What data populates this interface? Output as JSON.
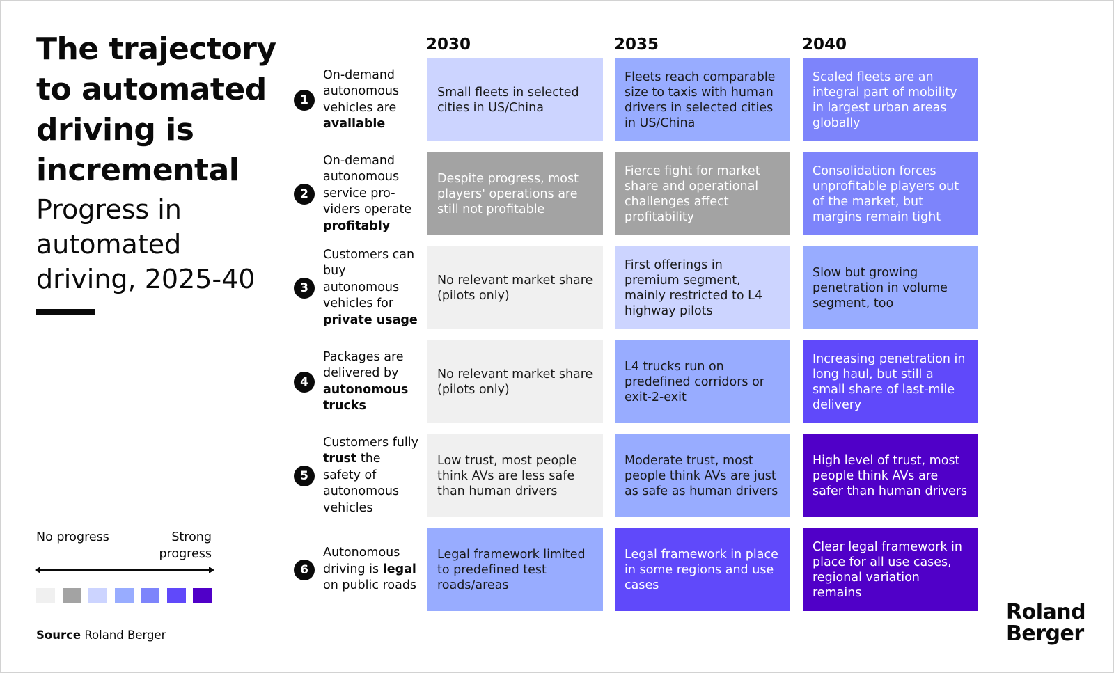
{
  "title": "The trajectory to automated driving is incremental",
  "subtitle": "Progress in automated driving, 2025-40",
  "years": [
    "2030",
    "2035",
    "2040"
  ],
  "rows": [
    {
      "number": "1",
      "label_before": "On-demand autonomous vehicles are",
      "label_bold": "available",
      "label_after": "",
      "cells": [
        {
          "text": "Small fleets in selected cities in US/China",
          "progress_level": 2
        },
        {
          "text": "Fleets reach comparable size to taxis with human drivers in selected cities in US/China",
          "progress_level": 3
        },
        {
          "text": "Scaled fleets are an integral part of mobility in largest urban areas globally",
          "progress_level": 4
        }
      ]
    },
    {
      "number": "2",
      "label_before": "On-demand autonomous service pro-viders operate",
      "label_bold": "profitably",
      "label_after": "",
      "cells": [
        {
          "text": "Despite progress, most players' operations are still not profitable",
          "progress_level": 1
        },
        {
          "text": "Fierce fight for market share and operational challenges affect profitability",
          "progress_level": 1
        },
        {
          "text": "Consolidation forces unprofitable players out of the market, but margins remain tight",
          "progress_level": 4
        }
      ]
    },
    {
      "number": "3",
      "label_before": "Customers can buy autonomous vehicles for",
      "label_bold": "private usage",
      "label_after": "",
      "cells": [
        {
          "text": "No relevant market share (pilots only)",
          "progress_level": 0
        },
        {
          "text": "First offerings in premium segment, mainly restricted to L4 highway pilots",
          "progress_level": 2
        },
        {
          "text": "Slow but growing penetration in volume segment, too",
          "progress_level": 3
        }
      ]
    },
    {
      "number": "4",
      "label_before": "Packages are delivered by",
      "label_bold": "autonomous trucks",
      "label_after": "",
      "cells": [
        {
          "text": "No relevant market share (pilots only)",
          "progress_level": 0
        },
        {
          "text": "L4 trucks run on predefined corridors or exit-2-exit",
          "progress_level": 3
        },
        {
          "text": "Increasing penetration in long haul, but still a small share of last-mile delivery",
          "progress_level": 5
        }
      ]
    },
    {
      "number": "5",
      "label_before": "Customers fully",
      "label_bold": "trust",
      "label_after": "the safety of autonomous vehicles",
      "cells": [
        {
          "text": "Low trust, most people think AVs are less safe than human drivers",
          "progress_level": 0
        },
        {
          "text": "Moderate trust, most people think AVs are just as safe as human drivers",
          "progress_level": 3
        },
        {
          "text": "High level of trust, most people think AVs are safer than human drivers",
          "progress_level": 6
        }
      ]
    },
    {
      "number": "6",
      "label_before": "Autonomous driving is",
      "label_bold": "legal",
      "label_after": "on public roads",
      "cells": [
        {
          "text": "Legal framework limited to predefined test roads/areas",
          "progress_level": 3
        },
        {
          "text": "Legal framework in place in some regions and use cases",
          "progress_level": 5
        },
        {
          "text": "Clear legal framework in place for all use cases, regional variation remains",
          "progress_level": 6
        }
      ]
    }
  ],
  "legend": {
    "left_label": "No progress",
    "right_label": "Strong progress",
    "scale_colors": [
      "#f0f0f0",
      "#a3a3a3",
      "#ccd4ff",
      "#98acff",
      "#7d84fb",
      "#6049fa",
      "#5000c8"
    ]
  },
  "source": {
    "label": "Source",
    "text": "Roland Berger"
  },
  "logo": {
    "line1": "Roland",
    "line2": "Berger"
  }
}
